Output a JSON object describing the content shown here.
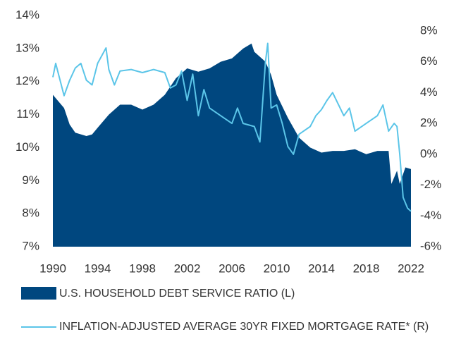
{
  "chart_data": {
    "type": "area-line",
    "xlim": [
      1990,
      2022
    ],
    "xticks": [
      1990,
      1994,
      1998,
      2002,
      2006,
      2010,
      2014,
      2018,
      2022
    ],
    "ylim": [
      7,
      14
    ],
    "yticks": [
      {
        "value": 7,
        "label": "7%"
      },
      {
        "value": 8,
        "label": "8%"
      },
      {
        "value": 9,
        "label": "9%"
      },
      {
        "value": 10,
        "label": "10%"
      },
      {
        "value": 11,
        "label": "11%"
      },
      {
        "value": 12,
        "label": "12%"
      },
      {
        "value": 13,
        "label": "13%"
      },
      {
        "value": 14,
        "label": "14%"
      }
    ],
    "y2lim": [
      -6,
      8
    ],
    "y2ticks": [
      {
        "value": -6,
        "label": "-6%"
      },
      {
        "value": -4,
        "label": "-4%"
      },
      {
        "value": -2,
        "label": "-2%"
      },
      {
        "value": 0,
        "label": "0%"
      },
      {
        "value": 2,
        "label": "2%"
      },
      {
        "value": 4,
        "label": "4%"
      },
      {
        "value": 6,
        "label": "6%"
      },
      {
        "value": 8,
        "label": "8%"
      }
    ],
    "series": [
      {
        "name": "U.S. HOUSEHOLD DEBT SERVICE RATIO (L)",
        "color": "#00477f",
        "kind": "area",
        "axis": "y",
        "x": [
          1990,
          1991,
          1991.5,
          1992,
          1993,
          1993.5,
          1994,
          1995,
          1996,
          1997,
          1998,
          1999,
          2000,
          2001,
          2002,
          2003,
          2004,
          2005,
          2006,
          2007,
          2007.75,
          2008,
          2009,
          2009.5,
          2010,
          2011,
          2012,
          2013,
          2014,
          2015,
          2016,
          2017,
          2018,
          2019,
          2020,
          2020.25,
          2020.75,
          2021,
          2021.5,
          2022
        ],
        "values": [
          11.6,
          11.2,
          10.7,
          10.45,
          10.35,
          10.4,
          10.6,
          11.0,
          11.3,
          11.3,
          11.15,
          11.3,
          11.6,
          12.1,
          12.4,
          12.3,
          12.4,
          12.6,
          12.7,
          13.0,
          13.15,
          12.9,
          12.6,
          12.2,
          11.6,
          10.9,
          10.3,
          10.0,
          9.85,
          9.9,
          9.9,
          9.95,
          9.8,
          9.9,
          9.9,
          8.9,
          9.3,
          8.9,
          9.4,
          9.35
        ]
      },
      {
        "name": "INFLATION-ADJUSTED AVERAGE 30YR FIXED MORTGAGE RATE* (R)",
        "color": "#5bc5e8",
        "kind": "line",
        "axis": "y2",
        "x": [
          1990,
          1990.25,
          1991,
          1991.5,
          1992,
          1992.5,
          1993,
          1993.5,
          1994,
          1994.75,
          1995,
          1995.5,
          1996,
          1997,
          1998,
          1999,
          2000,
          2000.5,
          2001,
          2001.5,
          2002,
          2002.5,
          2003,
          2003.5,
          2004,
          2005,
          2006,
          2006.5,
          2007,
          2008,
          2008.5,
          2009,
          2009.2,
          2009.5,
          2010,
          2010.5,
          2011,
          2011.5,
          2012,
          2013,
          2013.5,
          2014,
          2014.5,
          2015,
          2016,
          2016.5,
          2017,
          2018,
          2019,
          2019.5,
          2020,
          2020.5,
          2020.75,
          2021,
          2021.3,
          2021.7,
          2022
        ],
        "values": [
          5.0,
          5.9,
          3.8,
          4.8,
          5.6,
          5.9,
          4.8,
          4.5,
          5.9,
          6.9,
          5.5,
          4.5,
          5.4,
          5.5,
          5.3,
          5.5,
          5.3,
          4.3,
          4.5,
          5.4,
          3.5,
          5.2,
          2.5,
          4.2,
          3.0,
          2.5,
          2.0,
          3.0,
          2.0,
          1.8,
          0.8,
          6.0,
          7.2,
          3.0,
          3.2,
          2.0,
          0.5,
          0.0,
          1.3,
          1.8,
          2.5,
          2.9,
          3.5,
          4.0,
          2.5,
          3.0,
          1.5,
          2.0,
          2.5,
          3.2,
          1.5,
          2.0,
          1.8,
          0.0,
          -2.8,
          -3.5,
          -3.7
        ]
      }
    ]
  }
}
